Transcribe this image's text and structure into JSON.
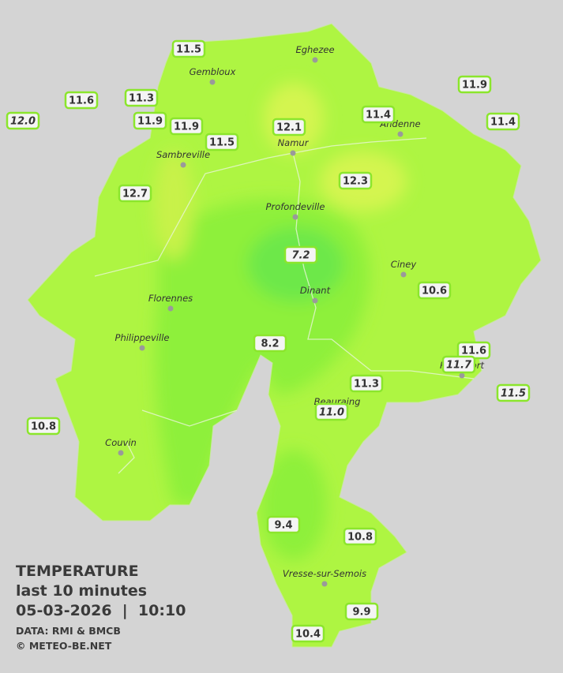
{
  "header": {
    "title": "TEMPERATURE",
    "subtitle": "last 10 minutes",
    "datetime": "05-03-2026  |  10:10",
    "source": "DATA: RMI & BMCB",
    "copyright": "© METEO-BE.NET"
  },
  "cities": [
    "Eghezee",
    "Gembloux",
    "Andenne",
    "Namur",
    "Sambreville",
    "Profondeville",
    "Ciney",
    "Dinant",
    "Florennes",
    "Philippeville",
    "Rochefort",
    "Beauraing",
    "Couvin",
    "Vresse-sur-Semois"
  ],
  "stations": [
    "11.5",
    "11.6",
    "11.3",
    "12.0",
    "11.9",
    "11.9",
    "11.5",
    "12.1",
    "11.4",
    "11.9",
    "11.4",
    "12.3",
    "12.7",
    "7.2",
    "10.6",
    "8.2",
    "11.6",
    "11.7",
    "11.5",
    "11.3",
    "11.0",
    "10.8",
    "9.4",
    "10.8",
    "9.9",
    "10.4"
  ]
}
